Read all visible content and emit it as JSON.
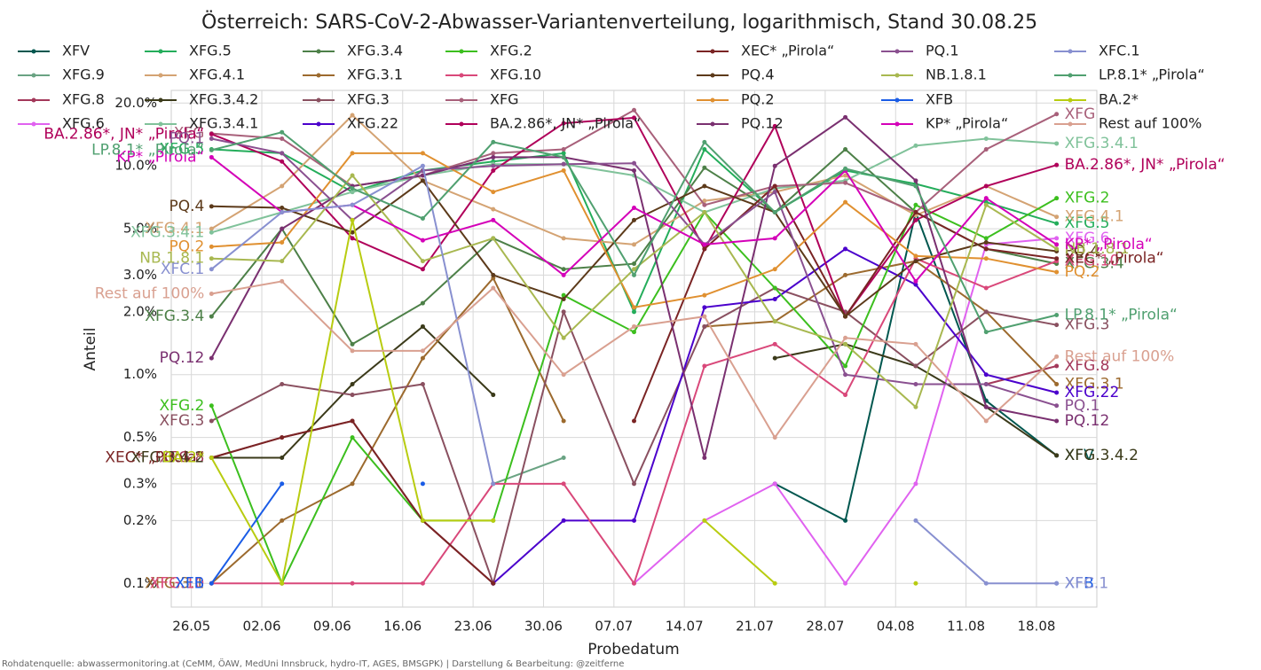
{
  "chart_data": {
    "type": "line",
    "title": "Österreich: SARS-CoV-2-Abwasser-Variantenverteilung, logarithmisch, Stand 30.08.25",
    "x_label": "Probedatum",
    "y_label": "Anteil",
    "source": "Rohdatenquelle: abwassermonitoring.at (CeMM, ÖAW, MedUni Innsbruck, hydro-IT, AGES, BMSGPK) | Darstellung & Bearbeitung: @zeitferne",
    "log_y": true,
    "grid": true,
    "x": [
      "28.05",
      "04.06",
      "11.06",
      "18.06",
      "25.06",
      "02.07",
      "09.07",
      "16.07",
      "23.07",
      "30.07",
      "06.08",
      "13.08",
      "20.08"
    ],
    "xlim": [
      "24.05",
      "24.08"
    ],
    "xticks": [
      "26.05",
      "02.06",
      "09.06",
      "16.06",
      "23.06",
      "30.06",
      "07.07",
      "14.07",
      "21.07",
      "28.07",
      "04.08",
      "11.08",
      "18.08"
    ],
    "ylim": [
      0.077,
      23
    ],
    "yticks": [
      {
        "value": 0.1,
        "label": "0.1%"
      },
      {
        "value": 0.2,
        "label": "0.2%"
      },
      {
        "value": 0.3,
        "label": "0.3%"
      },
      {
        "value": 0.5,
        "label": "0.5%"
      },
      {
        "value": 1,
        "label": "1.0%"
      },
      {
        "value": 2,
        "label": "2.0%"
      },
      {
        "value": 3,
        "label": "3.0%"
      },
      {
        "value": 5,
        "label": "5.0%"
      },
      {
        "value": 10,
        "label": "10.0%"
      },
      {
        "value": 20,
        "label": "20.0%"
      }
    ],
    "series": [
      {
        "name": "XFV",
        "color": "#00574f",
        "values": [
          null,
          null,
          null,
          null,
          null,
          null,
          null,
          null,
          0.3,
          0.2,
          6.0,
          0.75,
          0.41
        ]
      },
      {
        "name": "XFG.9",
        "color": "#6aa383",
        "values": [
          null,
          null,
          null,
          null,
          0.3,
          0.4,
          null,
          null,
          null,
          null,
          null,
          null,
          null
        ]
      },
      {
        "name": "XFG.8",
        "color": "#a3385a",
        "values": [
          0.4,
          0.5,
          0.6,
          0.2,
          0.1,
          null,
          null,
          null,
          null,
          null,
          null,
          0.9,
          1.1
        ]
      },
      {
        "name": "XFG.6",
        "color": "#e062f0",
        "values": [
          null,
          null,
          null,
          null,
          null,
          null,
          0.1,
          0.2,
          0.3,
          0.1,
          0.3,
          4.2,
          4.5
        ]
      },
      {
        "name": "XFG.5",
        "color": "#24ad5b",
        "values": [
          12.0,
          11.5,
          7.5,
          9.5,
          10.5,
          11.5,
          2.0,
          12.0,
          6.0,
          9.5,
          8.2,
          6.7,
          5.3
        ]
      },
      {
        "name": "XFG.4.1",
        "color": "#d4a373",
        "values": [
          5.0,
          8.0,
          17.5,
          8.5,
          6.2,
          4.5,
          4.2,
          6.8,
          7.5,
          9.0,
          5.8,
          8.0,
          5.7
        ]
      },
      {
        "name": "XFG.3.4.2",
        "color": "#3b3a1a",
        "values": [
          0.4,
          0.4,
          0.9,
          1.7,
          0.8,
          null,
          null,
          null,
          1.2,
          1.4,
          1.1,
          0.7,
          0.41
        ]
      },
      {
        "name": "XFG.3.4.1",
        "color": "#80c29a",
        "values": [
          4.8,
          6.0,
          7.5,
          9.0,
          10.2,
          10.2,
          9.0,
          6.0,
          7.8,
          8.5,
          12.5,
          13.5,
          12.8
        ]
      },
      {
        "name": "XFG.3.4",
        "color": "#4d8048",
        "values": [
          1.9,
          5.0,
          1.4,
          2.2,
          4.5,
          3.2,
          3.4,
          9.8,
          6.0,
          12.0,
          6.0,
          4.0,
          3.4
        ]
      },
      {
        "name": "XFG.3.1",
        "color": "#9c6a2e",
        "values": [
          0.1,
          0.2,
          0.3,
          1.2,
          2.9,
          0.6,
          null,
          1.7,
          1.8,
          3.0,
          3.5,
          2.0,
          0.9
        ]
      },
      {
        "name": "XFG.3",
        "color": "#8a5060",
        "values": [
          0.6,
          0.9,
          0.8,
          0.9,
          0.1,
          2.0,
          0.3,
          1.7,
          2.6,
          2.0,
          1.1,
          2.0,
          1.73
        ]
      },
      {
        "name": "XFG.22",
        "color": "#4b00cc",
        "values": [
          null,
          null,
          null,
          null,
          0.1,
          0.2,
          0.2,
          2.1,
          2.3,
          4.0,
          2.7,
          1.0,
          0.82
        ]
      },
      {
        "name": "XFG.2",
        "color": "#3cbf1e",
        "values": [
          0.71,
          0.1,
          0.5,
          0.2,
          0.2,
          2.4,
          1.6,
          6.0,
          2.6,
          1.1,
          6.5,
          4.5,
          7.0
        ]
      },
      {
        "name": "XFG.10",
        "color": "#d9487a",
        "values": [
          0.1,
          0.1,
          0.1,
          0.1,
          0.3,
          0.3,
          0.1,
          1.1,
          1.4,
          0.8,
          3.6,
          2.6,
          3.5
        ]
      },
      {
        "name": "XFG",
        "color": "#a8607a",
        "values": [
          14.3,
          13.5,
          8.0,
          9.0,
          11.5,
          12.0,
          18.5,
          6.5,
          8.0,
          8.3,
          6.0,
          12.0,
          17.7
        ]
      },
      {
        "name": "BA.2.86*, JN* „Pirola“",
        "color": "#b0005a",
        "values": [
          14.2,
          10.5,
          4.5,
          3.2,
          9.5,
          16.0,
          17.0,
          4.0,
          15.5,
          1.9,
          5.5,
          8.0,
          10.1
        ]
      },
      {
        "name": "XEC* „Pirola“",
        "color": "#7a2424",
        "values": [
          0.4,
          0.5,
          0.6,
          0.2,
          0.1,
          null,
          0.6,
          4.0,
          8.0,
          1.9,
          6.0,
          4.0,
          3.6
        ]
      },
      {
        "name": "PQ.4",
        "color": "#5c3a1a",
        "values": [
          6.4,
          6.3,
          4.8,
          8.5,
          3.0,
          2.3,
          5.5,
          8.0,
          6.0,
          1.9,
          3.5,
          4.3,
          3.9
        ]
      },
      {
        "name": "PQ.2",
        "color": "#e09030",
        "values": [
          4.1,
          4.3,
          11.5,
          11.5,
          7.5,
          9.5,
          2.1,
          2.4,
          3.2,
          6.7,
          3.7,
          3.6,
          3.1
        ]
      },
      {
        "name": "PQ.12",
        "color": "#7a3070",
        "values": [
          1.2,
          5.0,
          8.0,
          9.0,
          11.0,
          11.0,
          9.5,
          0.4,
          10.0,
          17.1,
          8.5,
          0.7,
          0.6
        ]
      },
      {
        "name": "PQ.1",
        "color": "#8a5090",
        "values": [
          13.5,
          11.5,
          5.5,
          9.5,
          10.0,
          10.2,
          10.3,
          4.2,
          7.5,
          1.0,
          0.9,
          0.9,
          0.71
        ]
      },
      {
        "name": "NB.1.8.1",
        "color": "#a8b850",
        "values": [
          3.6,
          3.5,
          9.0,
          3.5,
          4.5,
          1.5,
          3.2,
          6.0,
          1.8,
          1.4,
          0.7,
          6.5,
          4.0
        ]
      },
      {
        "name": "XFB",
        "color": "#1a5ce6",
        "values": [
          0.1,
          0.3,
          null,
          0.3,
          null,
          null,
          null,
          null,
          null,
          null,
          null,
          null,
          0.1
        ]
      },
      {
        "name": "KP* „Pirola“",
        "color": "#d400b8",
        "values": [
          11.0,
          6.0,
          6.5,
          4.4,
          5.5,
          3.0,
          6.3,
          4.2,
          4.5,
          9.5,
          2.8,
          7.0,
          4.2
        ]
      },
      {
        "name": "XFC.1",
        "color": "#8890d0",
        "values": [
          3.2,
          6.0,
          6.5,
          10.0,
          0.3,
          null,
          null,
          null,
          null,
          null,
          0.2,
          0.1,
          0.1
        ]
      },
      {
        "name": "LP.8.1* „Pirola“",
        "color": "#50a070",
        "values": [
          11.9,
          14.5,
          7.8,
          5.6,
          13.0,
          11.0,
          3.0,
          13.0,
          6.0,
          9.7,
          8.0,
          1.6,
          1.93
        ]
      },
      {
        "name": "BA.2*",
        "color": "#b8cc10",
        "values": [
          0.4,
          0.1,
          5.5,
          0.2,
          0.2,
          null,
          null,
          0.2,
          0.1,
          null,
          0.1,
          null,
          null
        ]
      },
      {
        "name": "Rest auf 100%",
        "color": "#d9a090",
        "values": [
          2.44,
          2.8,
          1.3,
          1.3,
          2.6,
          1.0,
          1.7,
          1.9,
          0.5,
          1.5,
          1.4,
          0.6,
          1.22
        ]
      }
    ]
  }
}
